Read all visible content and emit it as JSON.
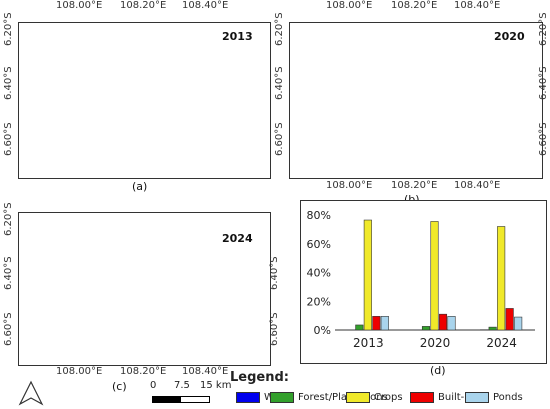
{
  "maps": [
    {
      "year": "2013",
      "label": "(a)",
      "lon_ticks": [
        "108.00°E",
        "108.20°E",
        "108.40°E"
      ],
      "lon_pos": "bottom",
      "lat_ticks": [
        "6.20°S",
        "6.40°S",
        "6.60°S"
      ],
      "lat_pos": "left"
    },
    {
      "year": "2020",
      "label": "(b)",
      "lon_ticks": [
        "108.00°E",
        "108.20°E",
        "108.40°E"
      ],
      "lon_pos": "top",
      "lat_ticks": [
        "6.20°S",
        "6.40°S",
        "6.60°S"
      ],
      "lat_pos": "right"
    },
    {
      "year": "2024",
      "label": "(c)",
      "lon_ticks": [
        "108.00°E",
        "108.20°E",
        "108.40°E"
      ],
      "lon_pos": "bottom",
      "lat_ticks": [
        "6.20°S",
        "6.40°S",
        "6.60°S"
      ],
      "lat_pos": "both"
    }
  ],
  "top_lon_ticks": [
    "108.00°E",
    "108.20°E",
    "108.40°E"
  ],
  "chart_label": "(d)",
  "chart_data": {
    "type": "bar",
    "categories": [
      "2013",
      "2020",
      "2024"
    ],
    "series": [
      {
        "name": "Water",
        "color": "#0000ee",
        "values": [
          0.1,
          0.1,
          0.2
        ]
      },
      {
        "name": "Forest/Plantations",
        "color": "#33a02c",
        "values": [
          3.5,
          2.5,
          2.0
        ]
      },
      {
        "name": "Crops",
        "color": "#f0e92a",
        "values": [
          76.5,
          75.5,
          72.0
        ]
      },
      {
        "name": "Built-up",
        "color": "#ee0000",
        "values": [
          9.5,
          11.0,
          15.0
        ]
      },
      {
        "name": "Ponds",
        "color": "#a9d4ec",
        "values": [
          9.5,
          9.5,
          9.0
        ]
      }
    ],
    "yticks": [
      "0%",
      "20%",
      "40%",
      "60%",
      "80%"
    ],
    "ylim": [
      0,
      80
    ]
  },
  "legend": {
    "title": "Legend:"
  },
  "scale_bar": {
    "labels": [
      "0",
      "7.5",
      "15 km"
    ]
  }
}
